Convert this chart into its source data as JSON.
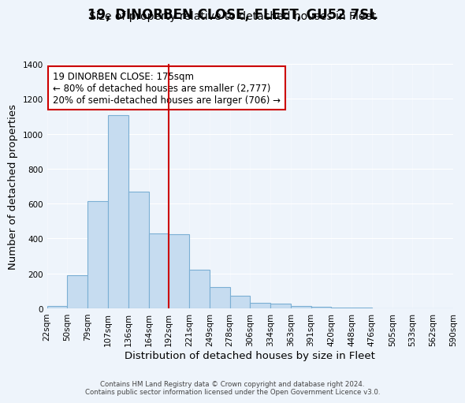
{
  "title": "19, DINORBEN CLOSE, FLEET, GU52 7SL",
  "subtitle": "Size of property relative to detached houses in Fleet",
  "xlabel": "Distribution of detached houses by size in Fleet",
  "ylabel": "Number of detached properties",
  "bin_labels": [
    "22sqm",
    "50sqm",
    "79sqm",
    "107sqm",
    "136sqm",
    "164sqm",
    "192sqm",
    "221sqm",
    "249sqm",
    "278sqm",
    "306sqm",
    "334sqm",
    "363sqm",
    "391sqm",
    "420sqm",
    "448sqm",
    "476sqm",
    "505sqm",
    "533sqm",
    "562sqm",
    "590sqm"
  ],
  "bar_values": [
    15,
    190,
    615,
    1105,
    670,
    430,
    425,
    220,
    120,
    70,
    30,
    25,
    15,
    10,
    5,
    5,
    0,
    0,
    0,
    0
  ],
  "bar_color": "#c6dcf0",
  "bar_edge_color": "#7bafd4",
  "vline_index": 6,
  "vline_color": "#cc0000",
  "annotation_title": "19 DINORBEN CLOSE: 175sqm",
  "annotation_line1": "← 80% of detached houses are smaller (2,777)",
  "annotation_line2": "20% of semi-detached houses are larger (706) →",
  "annotation_box_color": "#ffffff",
  "annotation_box_edge": "#cc0000",
  "ylim": [
    0,
    1400
  ],
  "yticks": [
    0,
    200,
    400,
    600,
    800,
    1000,
    1200,
    1400
  ],
  "footer1": "Contains HM Land Registry data © Crown copyright and database right 2024.",
  "footer2": "Contains public sector information licensed under the Open Government Licence v3.0.",
  "bg_color": "#eef4fb",
  "title_fontsize": 12,
  "subtitle_fontsize": 10,
  "axis_label_fontsize": 9.5,
  "tick_fontsize": 7.5
}
